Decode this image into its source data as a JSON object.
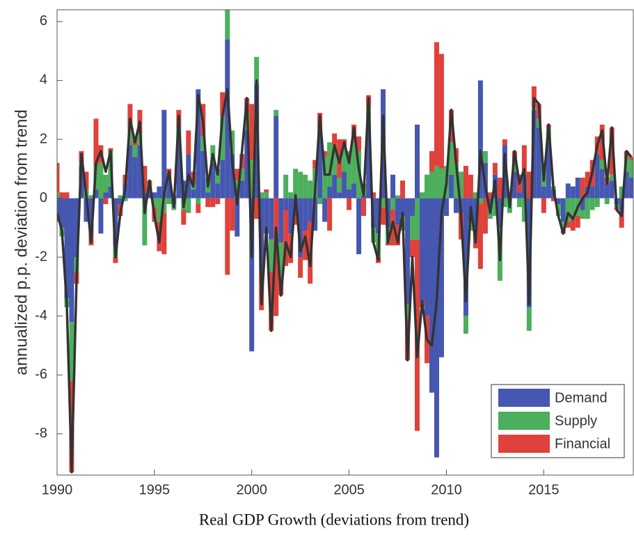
{
  "chart_data": {
    "type": "stacked_bar_line",
    "x_label": "Real GDP Growth (deviations from trend)",
    "y_label": "annualized p.p. deviation from trend",
    "x": [
      1990,
      1990.25,
      1990.5,
      1990.75,
      1991,
      1991.25,
      1991.5,
      1991.75,
      1992,
      1992.25,
      1992.5,
      1992.75,
      1993,
      1993.25,
      1993.5,
      1993.75,
      1994,
      1994.25,
      1994.5,
      1994.75,
      1995,
      1995.25,
      1995.5,
      1995.75,
      1996,
      1996.25,
      1996.5,
      1996.75,
      1997,
      1997.25,
      1997.5,
      1997.75,
      1998,
      1998.25,
      1998.5,
      1998.75,
      1999,
      1999.25,
      1999.5,
      1999.75,
      2000,
      2000.25,
      2000.5,
      2000.75,
      2001,
      2001.25,
      2001.5,
      2001.75,
      2002,
      2002.25,
      2002.5,
      2002.75,
      2003,
      2003.25,
      2003.5,
      2003.75,
      2004,
      2004.25,
      2004.5,
      2004.75,
      2005,
      2005.25,
      2005.5,
      2005.75,
      2006,
      2006.25,
      2006.5,
      2006.75,
      2007,
      2007.25,
      2007.5,
      2007.75,
      2008,
      2008.25,
      2008.5,
      2008.75,
      2009,
      2009.25,
      2009.5,
      2009.75,
      2010,
      2010.25,
      2010.5,
      2010.75,
      2011,
      2011.25,
      2011.5,
      2011.75,
      2012,
      2012.25,
      2012.5,
      2012.75,
      2013,
      2013.25,
      2013.5,
      2013.75,
      2014,
      2014.25,
      2014.5,
      2014.75,
      2015,
      2015.25,
      2015.5,
      2015.75,
      2016,
      2016.25,
      2016.5,
      2016.75,
      2017,
      2017.25,
      2017.5,
      2017.75,
      2018,
      2018.25,
      2018.5,
      2018.75,
      2019,
      2019.25,
      2019.5
    ],
    "series": [
      {
        "name": "Demand",
        "color": "#4557b0",
        "values": [
          -0.8,
          -1.0,
          -3.4,
          -4.2,
          -2.0,
          1.1,
          -0.8,
          -1.2,
          0.3,
          -1.2,
          0.2,
          0.4,
          -1.6,
          -0.2,
          0.5,
          1.8,
          1.4,
          1.8,
          0.2,
          0.3,
          0.2,
          0.4,
          3.0,
          0.7,
          -0.2,
          2.0,
          0.6,
          1.5,
          0.3,
          3.7,
          1.6,
          0.2,
          1.2,
          0.5,
          1.3,
          5.4,
          1.5,
          -1.3,
          0.6,
          2.3,
          -5.2,
          3.9,
          -2.5,
          -1.2,
          -1.4,
          2.8,
          -1.5,
          -0.4,
          -1.2,
          -0.6,
          -2.0,
          -1.1,
          -0.8,
          -1.1,
          2.2,
          -0.8,
          0.4,
          0.8,
          0.2,
          0.9,
          0.3,
          0.5,
          -1.9,
          0.1,
          2.4,
          -1.0,
          -1.2,
          3.7,
          -1.0,
          0.8,
          -0.9,
          -0.6,
          -3.6,
          -0.6,
          2.5,
          -3.5,
          -4.0,
          -6.6,
          -8.8,
          -5.4,
          -0.6,
          0.8,
          -0.5,
          -0.5,
          -4.0,
          -0.8,
          -1.0,
          4.0,
          1.2,
          -0.2,
          0.8,
          -1.0,
          1.8,
          0.1,
          0.9,
          0.2,
          0.8,
          -3.7,
          3.0,
          2.4,
          0.4,
          1.9,
          0.3,
          -0.2,
          -0.8,
          0.5,
          0.4,
          0.7,
          -0.4,
          0.4,
          0.4,
          1.5,
          1.0,
          0.5,
          0.6,
          -0.2,
          -0.5,
          0.9,
          0.7
        ]
      },
      {
        "name": "Supply",
        "color": "#4caf5c",
        "values": [
          0.2,
          -0.3,
          -0.3,
          -2.0,
          -0.5,
          0.1,
          0.3,
          0.1,
          0.8,
          1.2,
          0.6,
          1.2,
          -0.4,
          0.1,
          -0.1,
          0.5,
          0.4,
          0.4,
          -1.6,
          0.2,
          -0.3,
          -0.8,
          -0.5,
          -0.2,
          -0.2,
          0.4,
          -0.4,
          -0.5,
          0.2,
          -0.2,
          0.5,
          0.5,
          0.6,
          0.5,
          1.5,
          1.0,
          0.8,
          0.6,
          0.4,
          0.6,
          1.3,
          0.9,
          0.2,
          0.2,
          -1.1,
          0.2,
          -1.2,
          0.8,
          0.2,
          1.0,
          0.9,
          0.8,
          0.6,
          1.0,
          -0.2,
          1.4,
          1.5,
          1.0,
          0.5,
          0.8,
          1.3,
          1.4,
          1.6,
          0.4,
          0.7,
          -0.5,
          -0.8,
          -0.3,
          -0.5,
          -0.4,
          0.1,
          -0.5,
          -0.5,
          -0.8,
          -1.4,
          0.2,
          0.8,
          0.9,
          1.1,
          1.0,
          1.1,
          1.1,
          1.2,
          0.9,
          -0.6,
          -0.3,
          0.2,
          -0.2,
          0.4,
          -0.5,
          -0.6,
          -1.8,
          -0.3,
          -0.5,
          0.3,
          -0.3,
          -0.8,
          -0.8,
          0.1,
          0.3,
          0.7,
          0.5,
          0.1,
          -0.4,
          -0.3,
          -0.8,
          -0.7,
          -0.6,
          -0.3,
          -0.7,
          -0.4,
          -0.3,
          0.3,
          -0.2,
          0.2,
          -0.1,
          0.4,
          0.5,
          0.6
        ]
      },
      {
        "name": "Financial",
        "color": "#e0413b",
        "values": [
          1.0,
          0.2,
          0.2,
          -3.1,
          -0.4,
          0.4,
          0.6,
          -0.4,
          1.6,
          0.6,
          -0.2,
          0.1,
          -0.2,
          -0.4,
          0.3,
          0.9,
          0.3,
          0.8,
          0.9,
          0.1,
          -0.5,
          -1.0,
          -1.4,
          0.3,
          0.1,
          0.6,
          -0.5,
          0.8,
          0.4,
          -0.3,
          1.1,
          -0.3,
          -0.3,
          -0.2,
          0.8,
          -2.6,
          -1.1,
          0.4,
          0.5,
          0.5,
          1.9,
          -0.7,
          -1.3,
          0.1,
          -2.0,
          -4.0,
          -0.6,
          -1.9,
          -1.0,
          -0.3,
          -0.7,
          -1.0,
          -2.1,
          0.3,
          0.7,
          0.2,
          -1.1,
          0.4,
          1.3,
          0.3,
          -0.4,
          0.6,
          0.5,
          -0.6,
          0.4,
          0.2,
          -0.2,
          -0.6,
          -0.1,
          -1.2,
          -0.7,
          0.6,
          -1.4,
          -0.6,
          -6.5,
          -0.2,
          -1.6,
          0.7,
          4.2,
          3.9,
          0.0,
          1.1,
          0.5,
          -0.9,
          1.1,
          0.8,
          -0.7,
          -2.2,
          -1.2,
          0.2,
          0.4,
          0.7,
          0.2,
          0.1,
          0.4,
          0.6,
          1.0,
          0.9,
          0.7,
          0.5,
          -0.5,
          0.1,
          -0.1,
          0.0,
          -0.1,
          -0.2,
          -0.4,
          -0.4,
          0.7,
          0.5,
          0.9,
          0.6,
          1.2,
          0.2,
          1.6,
          -0.1,
          -0.5,
          0.2,
          0.1
        ]
      }
    ],
    "line": {
      "color": "#333333",
      "values": [
        -0.5,
        -1.1,
        -3.6,
        -9.3,
        -2.8,
        1.5,
        0.1,
        -1.5,
        1.2,
        1.6,
        0.9,
        1.6,
        -2.0,
        -0.5,
        0.3,
        2.7,
        1.9,
        2.6,
        -0.5,
        0.6,
        -0.6,
        -1.5,
        0.2,
        0.9,
        -0.3,
        2.8,
        -0.3,
        0.8,
        0.4,
        3.5,
        2.6,
        0.4,
        1.5,
        0.8,
        2.8,
        3.7,
        1.2,
        -0.2,
        1.6,
        3.4,
        -2.0,
        4.0,
        -3.6,
        -1.0,
        -4.5,
        -1.0,
        -3.3,
        -1.5,
        -2.0,
        0.1,
        -1.8,
        -1.3,
        -2.3,
        0.2,
        2.8,
        0.8,
        0.8,
        1.8,
        1.2,
        1.9,
        1.2,
        2.4,
        1.0,
        0.1,
        3.4,
        -1.5,
        -2.1,
        2.8,
        -1.5,
        -0.8,
        -1.5,
        -0.5,
        -5.5,
        -2.0,
        -5.4,
        -3.5,
        -4.8,
        -5.0,
        -3.5,
        -0.5,
        0.5,
        3.0,
        1.2,
        -0.5,
        -3.5,
        -0.3,
        -1.5,
        1.6,
        0.4,
        -0.5,
        0.6,
        -2.1,
        1.5,
        -0.3,
        1.6,
        0.5,
        1.0,
        -3.6,
        3.4,
        3.2,
        0.6,
        2.5,
        0.3,
        -0.6,
        -1.2,
        -0.5,
        -0.7,
        -0.3,
        0.0,
        0.2,
        0.9,
        1.8,
        2.3,
        0.5,
        2.4,
        -0.4,
        -0.6,
        1.6,
        1.4
      ]
    },
    "xlim": [
      1990,
      2019.6
    ],
    "ylim": [
      -9.4,
      6.4
    ],
    "xticks": [
      1990,
      1995,
      2000,
      2005,
      2010,
      2015
    ],
    "yticks": [
      -8,
      -6,
      -4,
      -2,
      0,
      2,
      4,
      6
    ],
    "grid": false,
    "legend": "lower right"
  }
}
